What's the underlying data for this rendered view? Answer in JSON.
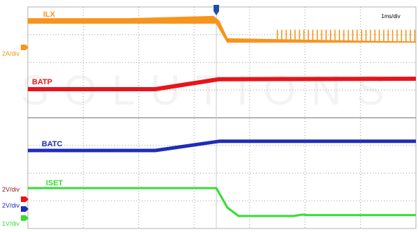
{
  "chart_data": {
    "type": "line",
    "timebase": "1ms/div",
    "x_unit": "ms",
    "xlim": [
      0,
      7
    ],
    "trigger_time_ms": 3.4,
    "grid": "dotted 7x8 divisions",
    "watermark": "SOLUTIONS",
    "series": [
      {
        "name": "ILX",
        "color": "#F7941D",
        "scale": "2A/div",
        "style": "switching-band",
        "points": [
          [
            0,
            1.0
          ],
          [
            2.0,
            1.0
          ],
          [
            3.4,
            1.0
          ],
          [
            3.6,
            0.15
          ],
          [
            7.0,
            0.15
          ]
        ],
        "band": [
          [
            0,
            1.2
          ],
          [
            1.8,
            1.2
          ],
          [
            3.35,
            1.3
          ],
          [
            3.45,
            1.1
          ],
          [
            3.6,
            0.3
          ]
        ],
        "bursts": {
          "start_ms": 4.5,
          "end_ms": 7.0,
          "period_ms": 0.08,
          "peak": 0.7
        }
      },
      {
        "name": "BATP",
        "color": "#E8141B",
        "scale": "",
        "points": [
          [
            0,
            0.0
          ],
          [
            2.3,
            0.0
          ],
          [
            3.45,
            0.65
          ],
          [
            7.0,
            0.68
          ]
        ]
      },
      {
        "name": "BATC",
        "color": "#1E2DB8",
        "scale": "2V/div",
        "points": [
          [
            0,
            0.0
          ],
          [
            2.3,
            0.0
          ],
          [
            3.45,
            0.66
          ],
          [
            7.0,
            0.66
          ]
        ]
      },
      {
        "name": "ISET",
        "color": "#33DD33",
        "scale": "1V/div",
        "points": [
          [
            0,
            1.0
          ],
          [
            3.4,
            1.0
          ],
          [
            3.6,
            0.3
          ],
          [
            3.8,
            0.0
          ],
          [
            4.8,
            0.0
          ],
          [
            4.95,
            0.05
          ],
          [
            5.05,
            0.03
          ],
          [
            7.0,
            0.03
          ]
        ]
      }
    ],
    "scale_labels": [
      {
        "text": "2A/div",
        "color": "#F7941D"
      },
      {
        "text": "2V/div",
        "color": "#8B1A1A"
      },
      {
        "text": "2V/div",
        "color": "#1E2DB8"
      },
      {
        "text": "1V/div",
        "color": "#33DD33"
      }
    ]
  }
}
